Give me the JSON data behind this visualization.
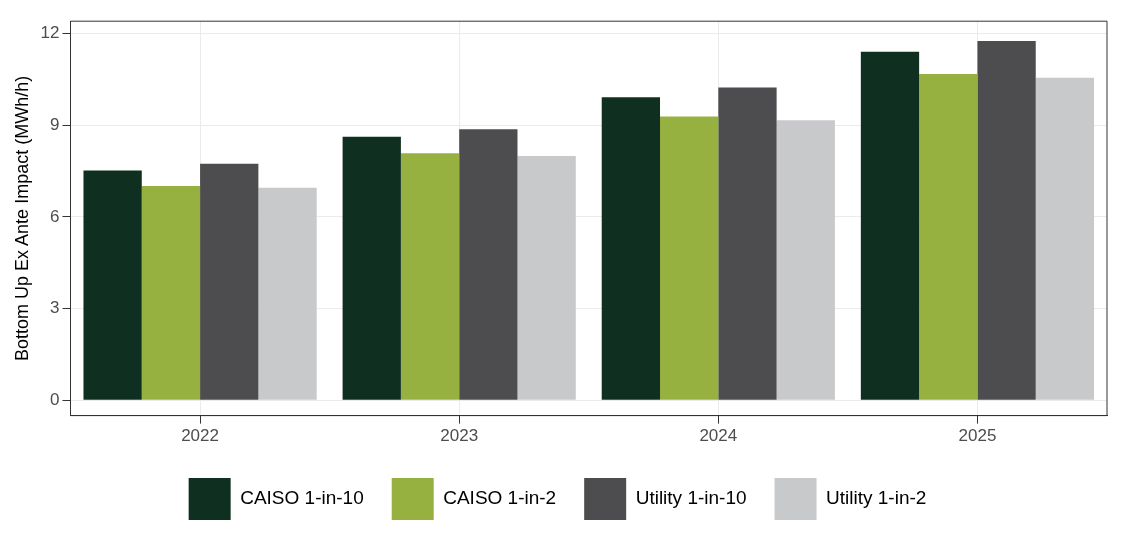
{
  "chart_data": {
    "type": "bar",
    "ylabel": "Bottom Up Ex Ante Impact (MWh/h)",
    "categories": [
      "2022",
      "2023",
      "2024",
      "2025"
    ],
    "series": [
      {
        "name": "CAISO 1-in-10",
        "color": "#0f3020",
        "values": [
          7.52,
          8.62,
          9.91,
          11.4
        ]
      },
      {
        "name": "CAISO 1-in-2",
        "color": "#97b140",
        "values": [
          7.01,
          8.08,
          9.28,
          10.67
        ]
      },
      {
        "name": "Utility 1-in-10",
        "color": "#4d4d4f",
        "values": [
          7.74,
          8.87,
          10.23,
          11.75
        ]
      },
      {
        "name": "Utility 1-in-2",
        "color": "#c8c9cb",
        "values": [
          6.95,
          7.99,
          9.16,
          10.55
        ]
      }
    ],
    "ylim": [
      -0.5,
      12.4
    ],
    "yticks": [
      0,
      3,
      6,
      9,
      12
    ],
    "grid": true,
    "legend": "bottom"
  }
}
